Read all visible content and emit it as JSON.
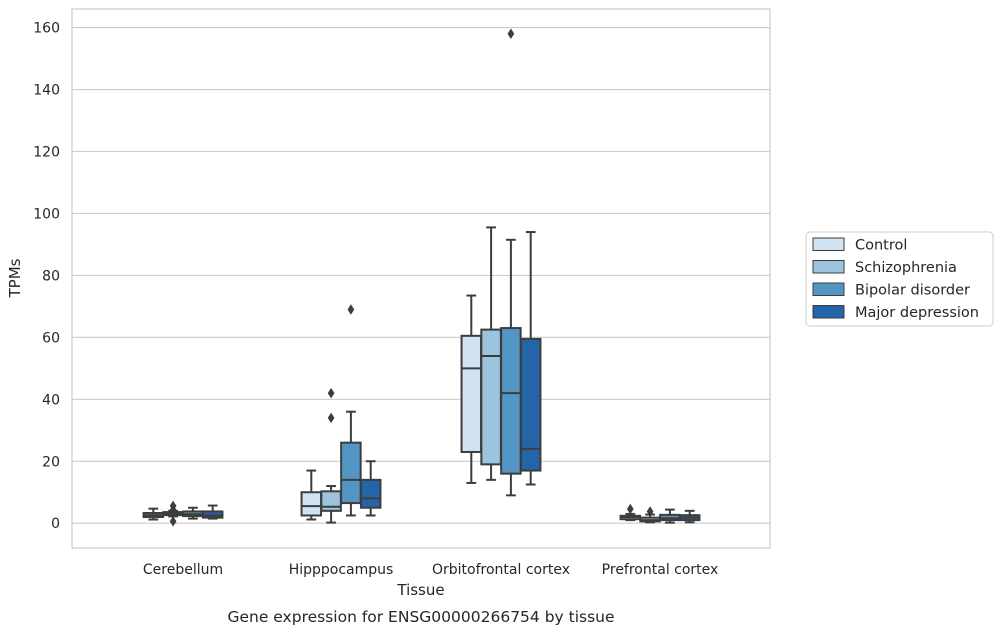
{
  "chart_data": {
    "type": "box",
    "caption": "Gene expression for ENSG00000266754 by tissue",
    "xlabel": "Tissue",
    "ylabel": "TPMs",
    "ylim": [
      -8,
      166
    ],
    "yticks": [
      0,
      20,
      40,
      60,
      80,
      100,
      120,
      140,
      160
    ],
    "grid": true,
    "legend_position": "right",
    "categories": [
      "Cerebellum",
      "Hipppocampus",
      "Orbitofrontal cortex",
      "Prefrontal cortex"
    ],
    "series": [
      {
        "name": "Control",
        "color": "#d1e2f1",
        "boxes": [
          {
            "whisker_low": 1.2,
            "q1": 2.0,
            "median": 2.6,
            "q3": 3.3,
            "whisker_high": 4.7,
            "outliers": []
          },
          {
            "whisker_low": 1.2,
            "q1": 2.5,
            "median": 5.5,
            "q3": 10.0,
            "whisker_high": 17.0,
            "outliers": []
          },
          {
            "whisker_low": 13.0,
            "q1": 23.0,
            "median": 50.0,
            "q3": 60.5,
            "whisker_high": 73.5,
            "outliers": []
          },
          {
            "whisker_low": 1.0,
            "q1": 1.3,
            "median": 2.0,
            "q3": 2.4,
            "whisker_high": 3.0,
            "outliers": [
              4.6
            ]
          }
        ]
      },
      {
        "name": "Schizophrenia",
        "color": "#9dc4de",
        "boxes": [
          {
            "whisker_low": 2.2,
            "q1": 2.6,
            "median": 3.0,
            "q3": 3.6,
            "whisker_high": 4.0,
            "outliers": [
              5.6,
              4.3,
              0.6
            ]
          },
          {
            "whisker_low": 0.2,
            "q1": 4.0,
            "median": 5.3,
            "q3": 10.3,
            "whisker_high": 12.0,
            "outliers": [
              42.0,
              34.0
            ]
          },
          {
            "whisker_low": 14.0,
            "q1": 19.0,
            "median": 54.0,
            "q3": 62.5,
            "whisker_high": 95.5,
            "outliers": []
          },
          {
            "whisker_low": 0.3,
            "q1": 0.6,
            "median": 1.0,
            "q3": 1.8,
            "whisker_high": 2.8,
            "outliers": [
              3.8
            ]
          }
        ]
      },
      {
        "name": "Bipolar disorder",
        "color": "#5396c5",
        "boxes": [
          {
            "whisker_low": 1.5,
            "q1": 2.3,
            "median": 2.9,
            "q3": 3.8,
            "whisker_high": 5.0,
            "outliers": []
          },
          {
            "whisker_low": 2.5,
            "q1": 6.5,
            "median": 14.0,
            "q3": 26.0,
            "whisker_high": 36.0,
            "outliers": [
              69.0
            ]
          },
          {
            "whisker_low": 9.0,
            "q1": 16.0,
            "median": 42.0,
            "q3": 63.0,
            "whisker_high": 91.5,
            "outliers": [
              158.0
            ]
          },
          {
            "whisker_low": 0.2,
            "q1": 1.0,
            "median": 1.6,
            "q3": 2.7,
            "whisker_high": 4.4,
            "outliers": []
          }
        ]
      },
      {
        "name": "Major depression",
        "color": "#2464a9",
        "boxes": [
          {
            "whisker_low": 1.5,
            "q1": 1.8,
            "median": 2.5,
            "q3": 3.8,
            "whisker_high": 5.7,
            "outliers": []
          },
          {
            "whisker_low": 2.5,
            "q1": 5.0,
            "median": 8.0,
            "q3": 14.0,
            "whisker_high": 20.0,
            "outliers": []
          },
          {
            "whisker_low": 12.5,
            "q1": 17.0,
            "median": 24.0,
            "q3": 59.5,
            "whisker_high": 94.0,
            "outliers": []
          },
          {
            "whisker_low": 0.3,
            "q1": 1.0,
            "median": 1.8,
            "q3": 2.6,
            "whisker_high": 4.0,
            "outliers": []
          }
        ]
      }
    ]
  }
}
